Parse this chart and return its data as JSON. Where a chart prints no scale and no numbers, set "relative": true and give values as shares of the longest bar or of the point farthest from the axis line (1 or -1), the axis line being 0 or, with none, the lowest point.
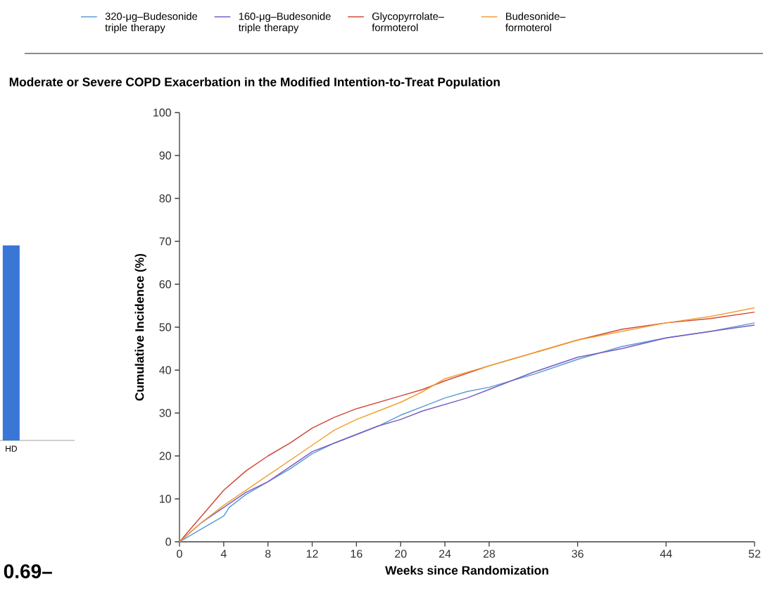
{
  "chart_data": [
    {
      "type": "bar",
      "relative": true,
      "categories": [
        "HD"
      ],
      "values": [
        1
      ],
      "color": "#3a76d6",
      "annotations": [
        "0.69–"
      ]
    },
    {
      "type": "line",
      "title": "Moderate or Severe COPD Exacerbation in the Modified Intention-to-Treat Population",
      "xlabel": "Weeks since Randomization",
      "ylabel": "Cumulative Incidence (%)",
      "xlim": [
        0,
        52
      ],
      "ylim": [
        0,
        100
      ],
      "xticks": [
        0,
        4,
        8,
        12,
        16,
        20,
        24,
        28,
        36,
        44,
        52
      ],
      "yticks": [
        0,
        10,
        20,
        30,
        40,
        50,
        60,
        70,
        80,
        90,
        100
      ],
      "legend": "top",
      "grid": false,
      "marker": "none",
      "line_style": "solid",
      "series": [
        {
          "name": "320-μg–Budesonide triple therapy",
          "color": "#5b9bd5",
          "x": [
            0,
            2,
            4,
            4.5,
            6,
            8,
            10,
            12,
            14,
            16,
            18,
            20,
            22,
            24,
            26,
            28,
            32,
            36,
            40,
            44,
            48,
            52
          ],
          "values": [
            0,
            3,
            6,
            8,
            11,
            14,
            17,
            20.5,
            23,
            25,
            27,
            29.5,
            31.5,
            33.5,
            35,
            36,
            39,
            42.5,
            45.5,
            47.5,
            49,
            51
          ]
        },
        {
          "name": "160-μg–Budesonide triple therapy",
          "color": "#7a5cc4",
          "x": [
            0,
            2,
            4,
            6,
            8,
            10,
            12,
            14,
            16,
            18,
            20,
            22,
            24,
            26,
            28,
            32,
            36,
            40,
            44,
            48,
            52
          ],
          "values": [
            0,
            4.5,
            8,
            11.5,
            14,
            17.5,
            21,
            23,
            25,
            27,
            28.5,
            30.5,
            32,
            33.5,
            35.5,
            39.5,
            43,
            45,
            47.5,
            49,
            50.5
          ]
        },
        {
          "name": "Glycopyrrolate–formoterol",
          "color": "#d0453a",
          "x": [
            0,
            2,
            4,
            6,
            8,
            10,
            12,
            14,
            16,
            18,
            20,
            22,
            24,
            28,
            32,
            36,
            40,
            44,
            48,
            52
          ],
          "values": [
            0,
            6,
            12,
            16.5,
            20,
            23,
            26.5,
            29,
            31,
            32.5,
            34,
            35.5,
            37.5,
            41,
            44,
            47,
            49.5,
            51,
            52,
            53.5
          ]
        },
        {
          "name": "Budesonide–formoterol",
          "color": "#f0a030",
          "x": [
            0,
            2,
            4,
            6,
            8,
            10,
            12,
            14,
            16,
            18,
            20,
            22,
            24,
            28,
            32,
            36,
            40,
            44,
            48,
            52
          ],
          "values": [
            0,
            4.5,
            8.5,
            12,
            15.5,
            19,
            22.5,
            26,
            28.5,
            30.5,
            32.5,
            35,
            38,
            41,
            44,
            47,
            49,
            51,
            52.5,
            54.5
          ]
        }
      ]
    }
  ]
}
